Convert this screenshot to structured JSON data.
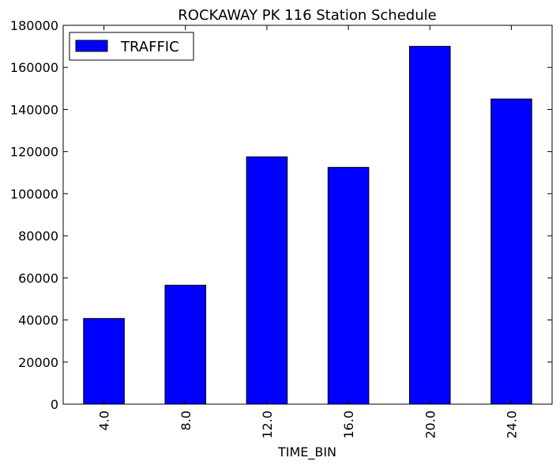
{
  "chart_data": {
    "type": "bar",
    "title": "ROCKAWAY PK 116 Station Schedule",
    "xlabel": "TIME_BIN",
    "ylabel": "",
    "categories": [
      "4.0",
      "8.0",
      "12.0",
      "16.0",
      "20.0",
      "24.0"
    ],
    "series": [
      {
        "name": "TRAFFIC",
        "values": [
          40700,
          56500,
          117500,
          112500,
          170000,
          145000
        ],
        "color": "#0000ff"
      }
    ],
    "ylim": [
      0,
      180000
    ],
    "yticks": [
      0,
      20000,
      40000,
      60000,
      80000,
      100000,
      120000,
      140000,
      160000,
      180000
    ],
    "ytick_labels": [
      "0",
      "20000",
      "40000",
      "60000",
      "80000",
      "100000",
      "120000",
      "140000",
      "160000",
      "180000"
    ],
    "grid": false,
    "legend_position": "top-left",
    "xtick_rotation": "vertical"
  }
}
